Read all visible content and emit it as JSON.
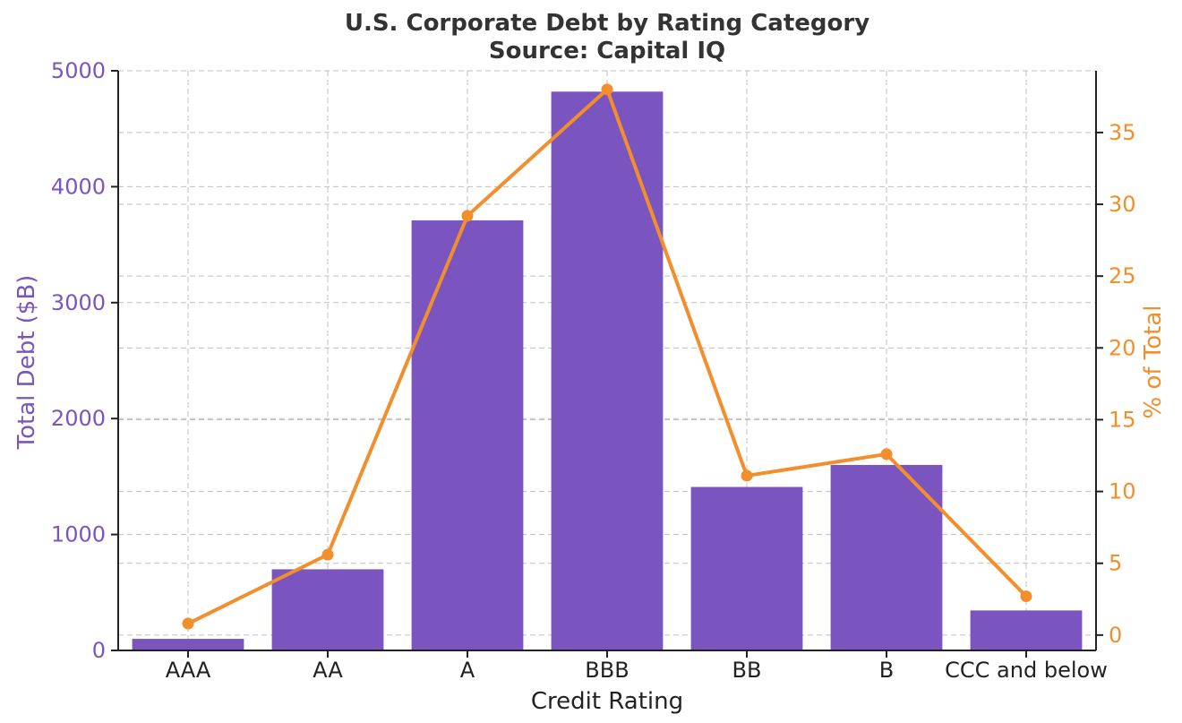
{
  "chart_data": {
    "type": "bar+line",
    "title": "U.S. Corporate Debt by Rating Category",
    "subtitle": "Source: Capital IQ",
    "xlabel": "Credit Rating",
    "ylabel_left": "Total Debt ($B)",
    "ylabel_right": "% of Total",
    "categories": [
      "AAA",
      "AA",
      "A",
      "BBB",
      "BB",
      "B",
      "CCC and below"
    ],
    "series": [
      {
        "name": "Total Debt ($B)",
        "type": "bar",
        "axis": "left",
        "values": [
          100,
          700,
          3710,
          4820,
          1410,
          1600,
          345
        ]
      },
      {
        "name": "% of Total",
        "type": "line",
        "axis": "right",
        "values": [
          0.8,
          5.6,
          29.2,
          38.0,
          11.1,
          12.6,
          2.7
        ]
      }
    ],
    "ylim_left": [
      0,
      5000
    ],
    "ylim_right": [
      -1.07,
      39.3
    ],
    "yticks_left": [
      0,
      1000,
      2000,
      3000,
      4000,
      5000
    ],
    "yticks_right": [
      0,
      5,
      10,
      15,
      20,
      25,
      30,
      35
    ],
    "grid": true,
    "colors": {
      "bar": "#7b55bf",
      "line": "#f28e2b",
      "left_axis": "#7b55bf",
      "right_axis": "#f28e2b",
      "title": "#333333"
    }
  }
}
